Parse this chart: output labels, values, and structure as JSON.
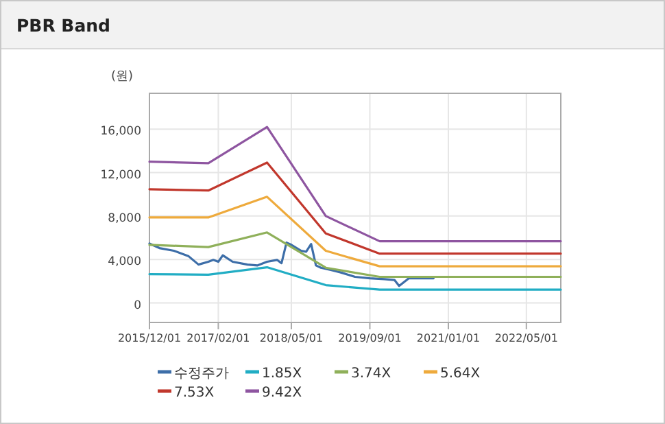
{
  "chart_data": {
    "type": "line",
    "title": "PBR Band",
    "ylabel": "(원)",
    "legend": "bottom",
    "grid": true,
    "x": [
      "2015-12",
      "2016-12",
      "2017-12",
      "2018-12",
      "2019-11",
      "2022-12"
    ],
    "xlim": [
      "2015-12-01",
      "2022-12-01"
    ],
    "xticks": [
      {
        "value": "2015-12-01",
        "label": "2015/12/01"
      },
      {
        "value": "2017-02-01",
        "label": "2017/02/01"
      },
      {
        "value": "2018-05-01",
        "label": "2018/05/01"
      },
      {
        "value": "2019-09-01",
        "label": "2019/09/01"
      },
      {
        "value": "2021-01-01",
        "label": "2021/01/01"
      },
      {
        "value": "2022-05-01",
        "label": "2022/05/01"
      }
    ],
    "ylim": [
      -1800,
      19300
    ],
    "yticks": [
      0,
      {
        "value": 4000,
        "label": "4,000"
      },
      {
        "value": 8000,
        "label": "8,000"
      },
      {
        "value": 12000,
        "label": "12,000"
      },
      {
        "value": 16000,
        "label": "16,000"
      }
    ],
    "series": [
      {
        "name": "수정주가",
        "color": "#3d6ea8",
        "x": [
          "2015-12",
          "2016-02",
          "2016-05",
          "2016-08",
          "2016-10",
          "2016-12",
          "2017-01",
          "2017-02",
          "2017-03",
          "2017-05",
          "2017-08",
          "2017-10",
          "2017-12",
          "2018-02",
          "2018-03",
          "2018-04",
          "2018-05",
          "2018-07",
          "2018-08",
          "2018-09",
          "2018-10",
          "2018-11",
          "2019-01",
          "2019-03",
          "2019-06",
          "2019-09",
          "2019-12",
          "2020-02",
          "2020-03",
          "2020-05",
          "2020-07",
          "2020-10"
        ],
        "values": [
          5470,
          5050,
          4800,
          4290,
          3530,
          3790,
          3960,
          3790,
          4380,
          3790,
          3530,
          3450,
          3790,
          3960,
          3660,
          5550,
          5350,
          4800,
          4720,
          5430,
          3450,
          3240,
          3030,
          2820,
          2400,
          2270,
          2190,
          2110,
          1560,
          2270,
          2270,
          2270
        ]
      },
      {
        "name": "1.85X",
        "color": "#21adc4",
        "values": [
          2650,
          2600,
          3280,
          1640,
          1220,
          1220
        ]
      },
      {
        "name": "3.74X",
        "color": "#8fb05a",
        "values": [
          5350,
          5140,
          6490,
          3240,
          2400,
          2400
        ]
      },
      {
        "name": "5.64X",
        "color": "#eeaa3c",
        "values": [
          7870,
          7870,
          9770,
          4800,
          3370,
          3370
        ]
      },
      {
        "name": "7.53X",
        "color": "#c1372c",
        "values": [
          10470,
          10350,
          12920,
          6400,
          4540,
          4540
        ]
      },
      {
        "name": "9.42X",
        "color": "#8e55a0",
        "values": [
          13000,
          12870,
          16200,
          8000,
          5680,
          5680
        ]
      }
    ]
  }
}
